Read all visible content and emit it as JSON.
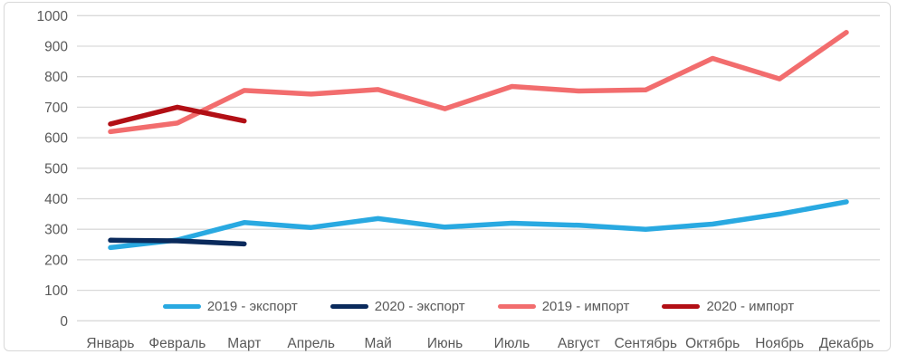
{
  "chart_data": {
    "type": "line",
    "title": "",
    "xlabel": "",
    "ylabel": "",
    "categories": [
      "Январь",
      "Февраль",
      "Март",
      "Апрель",
      "Май",
      "Июнь",
      "Июль",
      "Август",
      "Сентябрь",
      "Октябрь",
      "Ноябрь",
      "Декабрь"
    ],
    "yticks": [
      0,
      100,
      200,
      300,
      400,
      500,
      600,
      700,
      800,
      900,
      1000
    ],
    "ylim": [
      0,
      1000
    ],
    "grid": "horizontal",
    "legend_position": "bottom-inside",
    "axis_color": "#595959",
    "gridline_color": "#d9d9d9",
    "frame_color": "#d8d8d8",
    "series": [
      {
        "id": "2019-export",
        "name": "2019 - экспорт",
        "color": "#29a9e1",
        "values": [
          240,
          265,
          322,
          306,
          335,
          307,
          320,
          313,
          300,
          317,
          350,
          390
        ]
      },
      {
        "id": "2020-export",
        "name": "2020 - экспорт",
        "color": "#0a2a5c",
        "values": [
          264,
          262,
          252
        ]
      },
      {
        "id": "2019-import",
        "name": "2019 - импорт",
        "color": "#f26d6e",
        "values": [
          620,
          648,
          755,
          743,
          758,
          695,
          768,
          753,
          757,
          860,
          793,
          945
        ]
      },
      {
        "id": "2020-import",
        "name": "2020 - импорт",
        "color": "#b20f15",
        "values": [
          645,
          700,
          655
        ]
      }
    ]
  }
}
